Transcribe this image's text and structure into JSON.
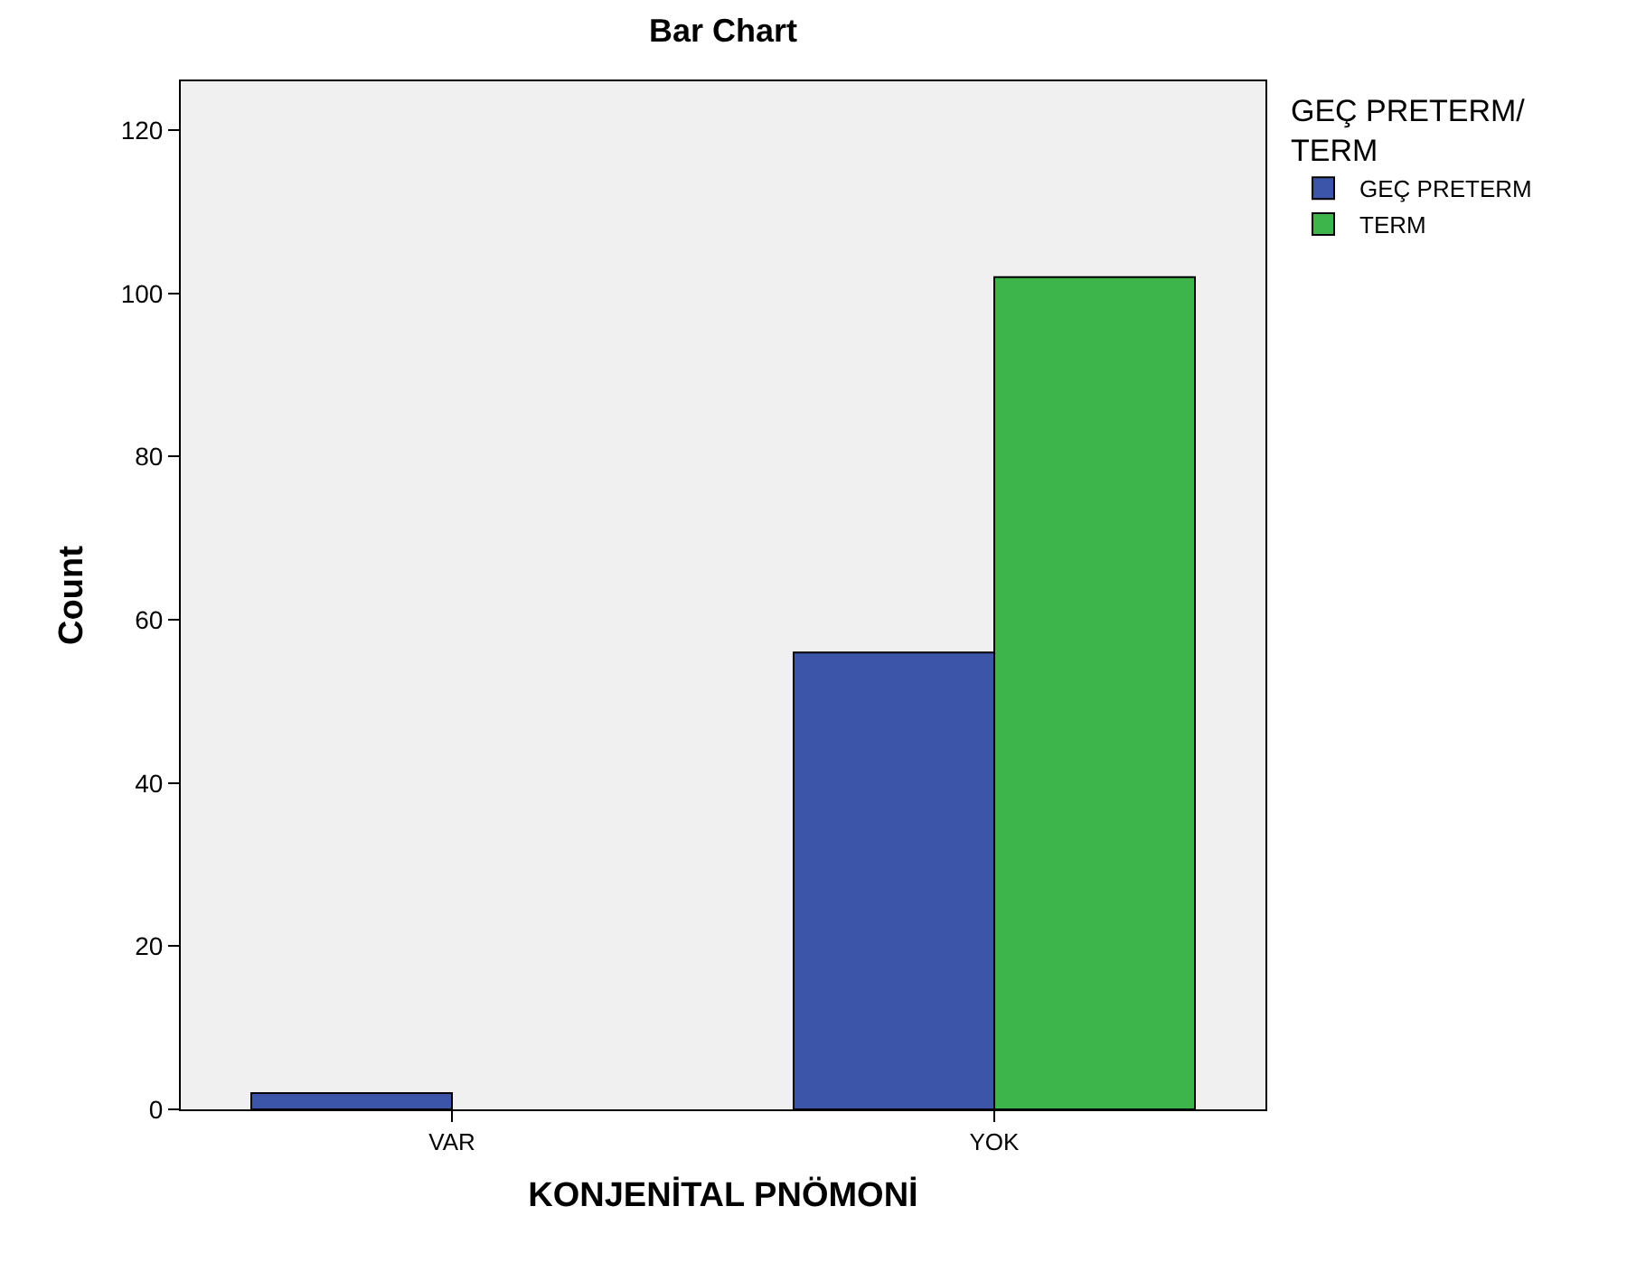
{
  "chart_data": {
    "type": "bar",
    "title": "Bar Chart",
    "xlabel": "KONJENİTAL PNÖMONİ",
    "ylabel": "Count",
    "legend_title": "GEÇ PRETERM/\nTERM",
    "categories": [
      "VAR",
      "YOK"
    ],
    "series": [
      {
        "name": "GEÇ PRETERM",
        "color": "#3d55a9",
        "values": [
          2,
          56
        ]
      },
      {
        "name": "TERM",
        "color": "#3db54a",
        "values": [
          null,
          102
        ]
      }
    ],
    "ylim": [
      0,
      126
    ],
    "yticks": [
      0,
      20,
      40,
      60,
      80,
      100,
      120
    ],
    "legend": "top right"
  }
}
